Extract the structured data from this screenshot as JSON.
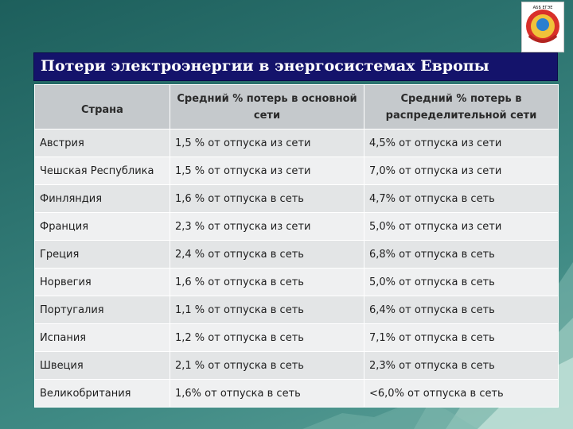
{
  "slide": {
    "title": "Потери электроэнергии в  энергосистемах  Европы",
    "logo_icon": "emblem-logo-icon",
    "logo_text": "АББ ЕГЭЕ"
  },
  "table": {
    "headers": [
      "Страна",
      "Средний % потерь в основной сети",
      "Средний % потерь в распределительной сети"
    ],
    "rows": [
      [
        "Австрия",
        "1,5 % от отпуска из сети",
        "4,5% от отпуска из сети"
      ],
      [
        "Чешская Республика",
        "1,5 % от отпуска из сети",
        "7,0% от отпуска из сети"
      ],
      [
        "Финляндия",
        "1,6 % от отпуска в сеть",
        "4,7% от отпуска в сеть"
      ],
      [
        "Франция",
        "2,3 % от отпуска из сети",
        "5,0% от отпуска из сети"
      ],
      [
        "Греция",
        "2,4 % от отпуска в сеть",
        "6,8% от отпуска в сеть"
      ],
      [
        "Норвегия",
        "1,6 % от отпуска в сеть",
        "5,0% от отпуска в сеть"
      ],
      [
        "Португалия",
        "1,1 % от отпуска в сеть",
        "6,4% от отпуска в сеть"
      ],
      [
        "Испания",
        "1,2 % от отпуска в сеть",
        "7,1% от отпуска в сеть"
      ],
      [
        "Швеция",
        "2,1 % от отпуска в сеть",
        "2,3% от отпуска в сеть"
      ],
      [
        "Великобритания",
        "1,6% от отпуска в сеть",
        "<6,0% от отпуска в сеть"
      ]
    ]
  },
  "colors": {
    "title_bar": "#14136b",
    "header_fill": "#c5c9cc",
    "row_fill": "#e3e5e6",
    "background": "#2d7470"
  }
}
